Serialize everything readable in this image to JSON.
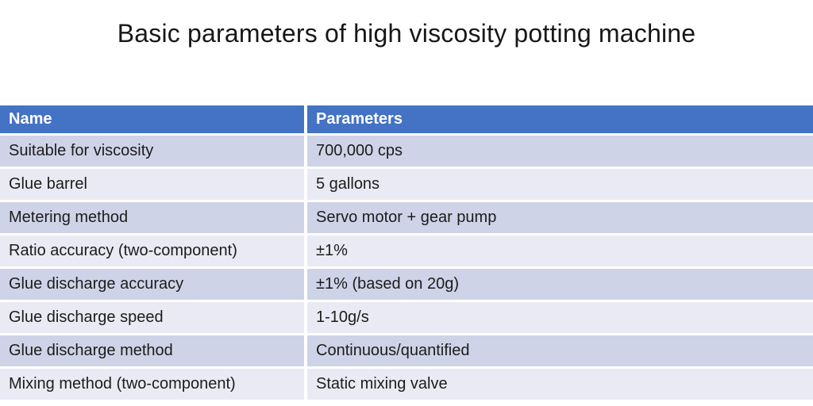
{
  "title": "Basic parameters of high viscosity potting machine",
  "table": {
    "columns": {
      "name": "Name",
      "parameters": "Parameters"
    },
    "rows": [
      {
        "name": "Suitable for viscosity",
        "value": "700,000 cps"
      },
      {
        "name": "Glue barrel",
        "value": "5 gallons"
      },
      {
        "name": "Metering method",
        "value": "Servo motor + gear pump"
      },
      {
        "name": "Ratio accuracy (two-component)",
        "value": "±1%"
      },
      {
        "name": "Glue discharge accuracy",
        "value": "±1% (based on 20g)"
      },
      {
        "name": "Glue discharge speed",
        "value": "1-10g/s"
      },
      {
        "name": "Glue discharge method",
        "value": "Continuous/quantified"
      },
      {
        "name": "Mixing method (two-component)",
        "value": "Static mixing valve"
      }
    ]
  },
  "colors": {
    "header_bg": "#4472c4",
    "header_text": "#ffffff",
    "row_band_dark": "#ced3e7",
    "row_band_light": "#e9eaf4",
    "body_text": "#1c1c1c",
    "title_text": "#171717"
  }
}
